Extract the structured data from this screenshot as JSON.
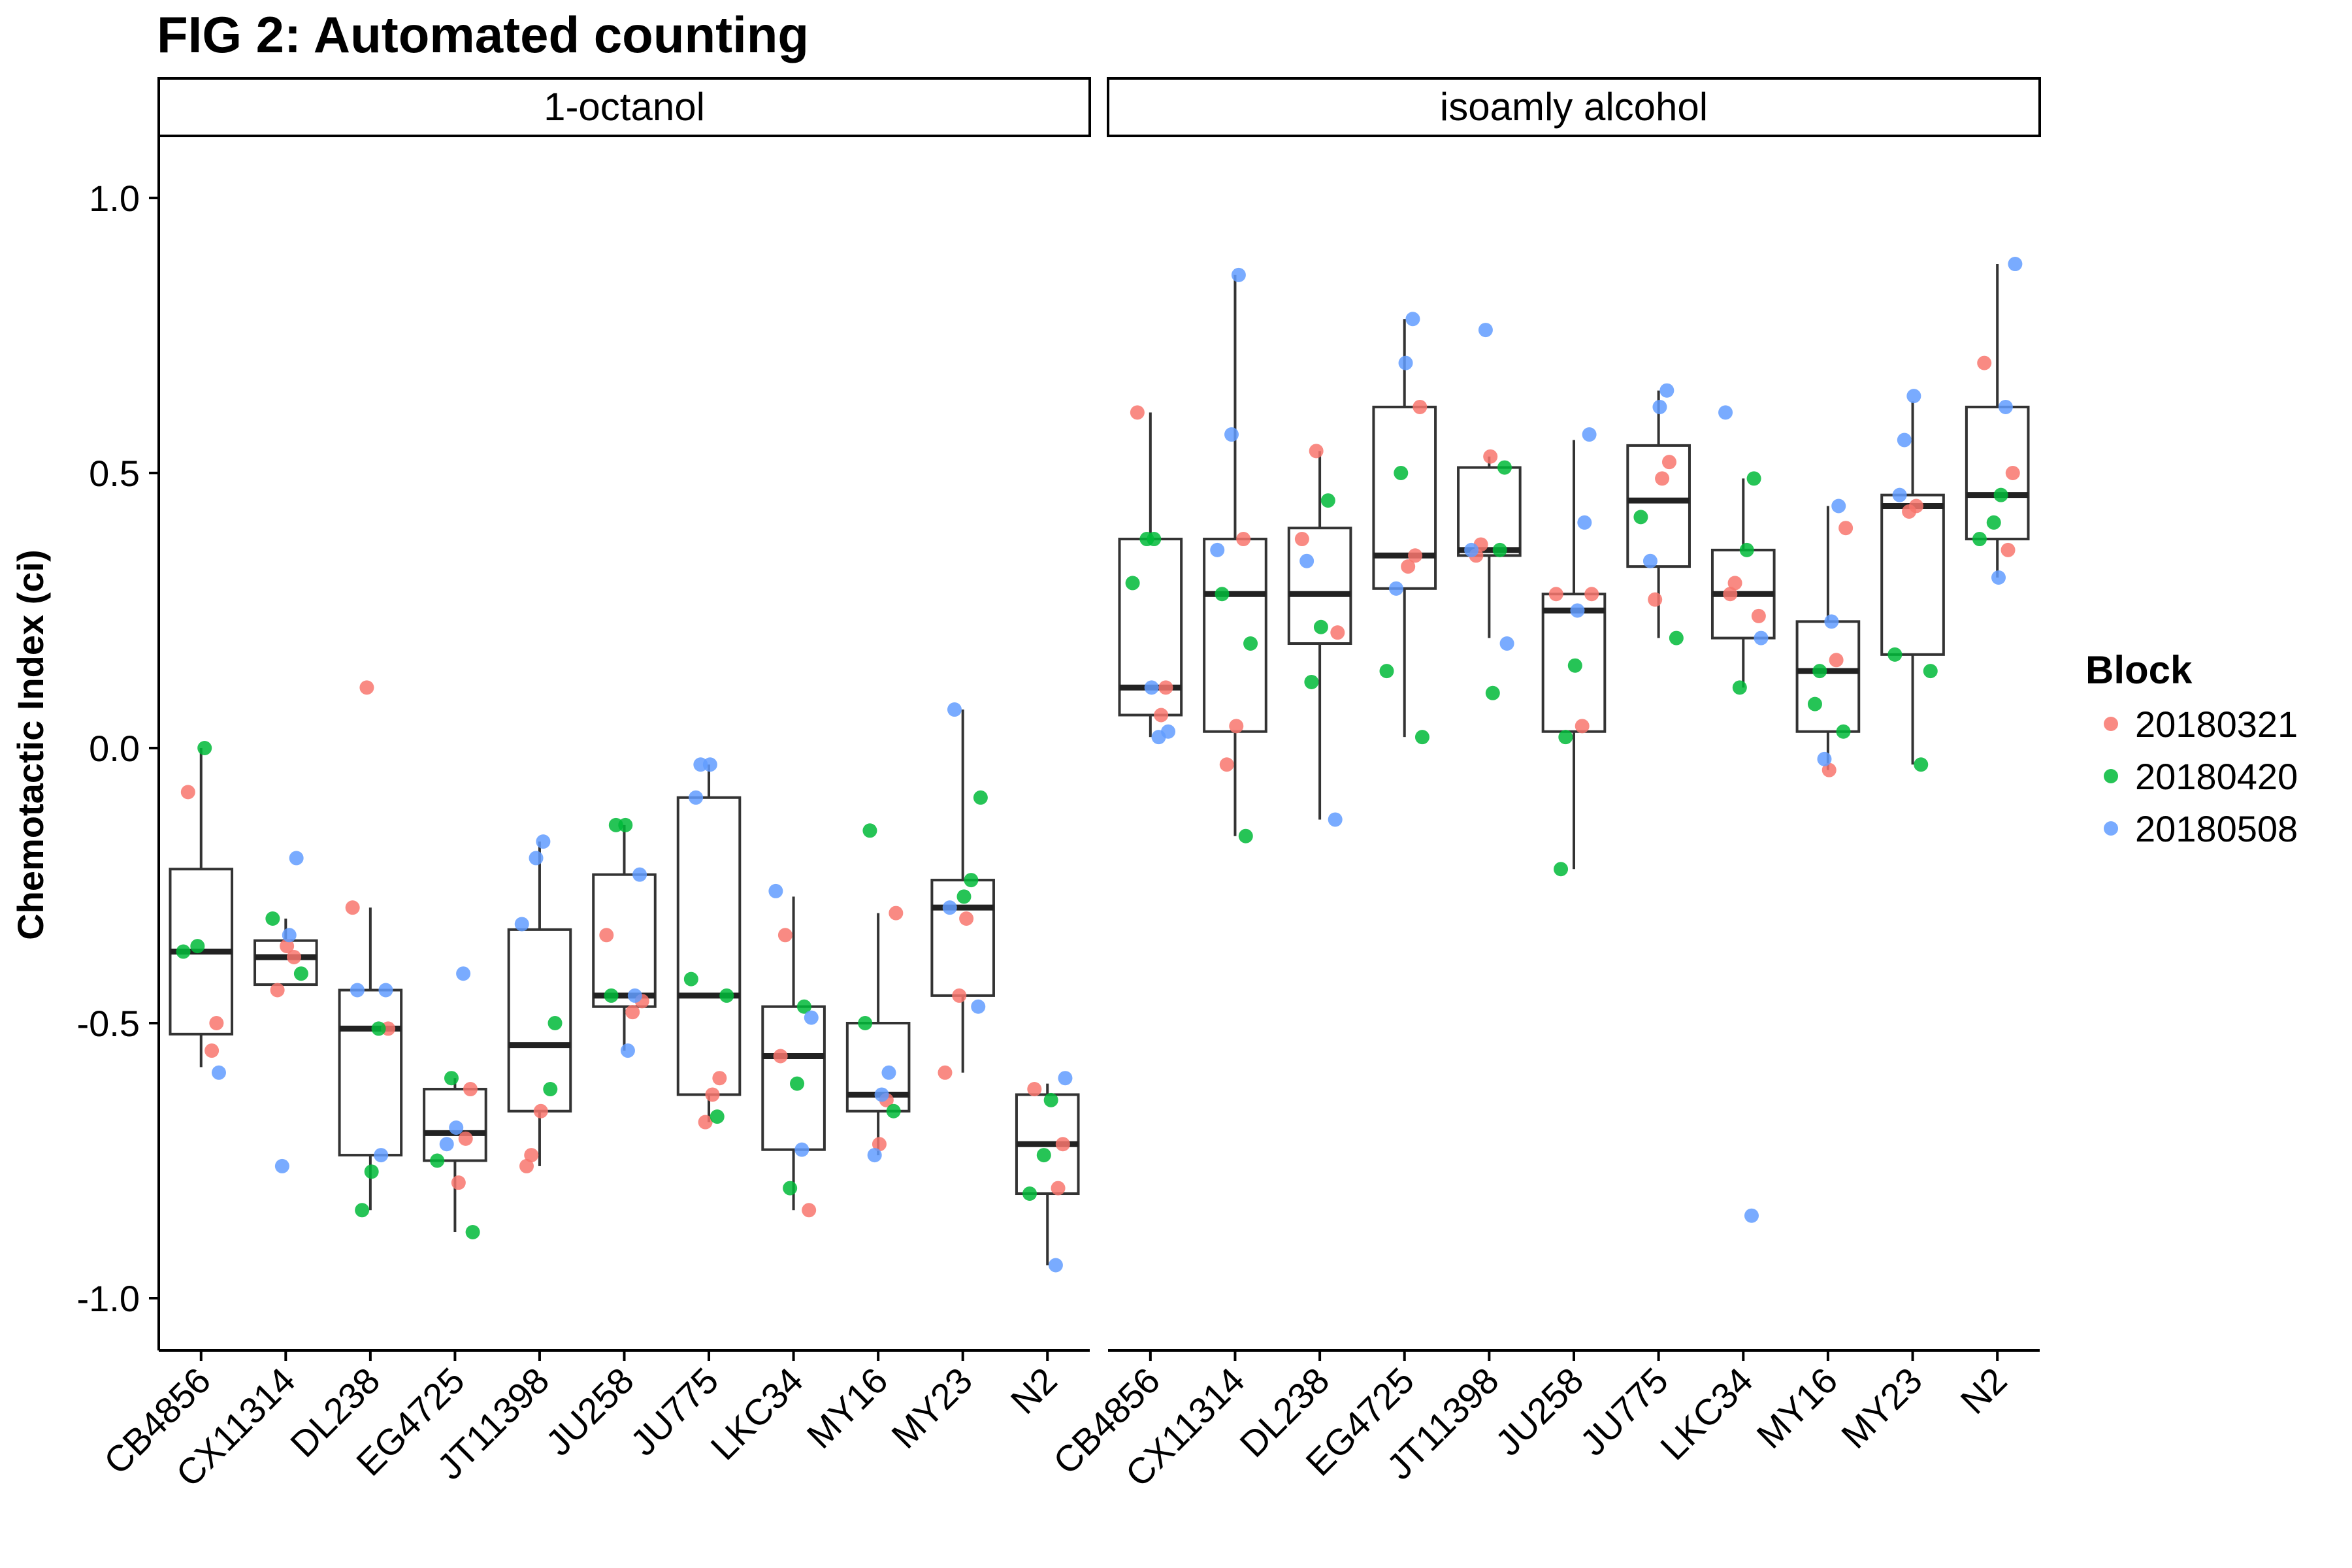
{
  "chart_data": {
    "type": "box",
    "title": "FIG 2: Automated counting",
    "ylabel": "Chemotactic Index (ci)",
    "xlabel": "",
    "ylim": [
      -1.1,
      1.1
    ],
    "yticks": [
      1.0,
      0.5,
      0.0,
      -0.5,
      -1.0
    ],
    "ytick_labels": [
      "1.0",
      "0.5",
      "0.0",
      "-0.5",
      "-1.0"
    ],
    "grid": false,
    "categories": [
      "CB4856",
      "CX11314",
      "DL238",
      "EG4725",
      "JT11398",
      "JU258",
      "JU775",
      "LKC34",
      "MY16",
      "MY23",
      "N2"
    ],
    "legend": {
      "title": "Block",
      "position": "right",
      "entries": [
        {
          "label": "20180321",
          "color": "#F8766D"
        },
        {
          "label": "20180420",
          "color": "#00BA38"
        },
        {
          "label": "20180508",
          "color": "#619CFF"
        }
      ]
    },
    "panels": [
      {
        "strip": "1-octanol",
        "boxes": [
          {
            "q1": -0.52,
            "median": -0.37,
            "q3": -0.22,
            "wlo": -0.58,
            "whi": 0.0
          },
          {
            "q1": -0.43,
            "median": -0.38,
            "q3": -0.35,
            "wlo": -0.43,
            "whi": -0.31
          },
          {
            "q1": -0.74,
            "median": -0.51,
            "q3": -0.44,
            "wlo": -0.84,
            "whi": -0.29
          },
          {
            "q1": -0.75,
            "median": -0.7,
            "q3": -0.62,
            "wlo": -0.88,
            "whi": -0.6
          },
          {
            "q1": -0.66,
            "median": -0.54,
            "q3": -0.33,
            "wlo": -0.76,
            "whi": -0.17
          },
          {
            "q1": -0.47,
            "median": -0.45,
            "q3": -0.23,
            "wlo": -0.55,
            "whi": -0.14
          },
          {
            "q1": -0.63,
            "median": -0.45,
            "q3": -0.09,
            "wlo": -0.68,
            "whi": -0.03
          },
          {
            "q1": -0.73,
            "median": -0.56,
            "q3": -0.47,
            "wlo": -0.84,
            "whi": -0.27
          },
          {
            "q1": -0.66,
            "median": -0.63,
            "q3": -0.5,
            "wlo": -0.74,
            "whi": -0.3
          },
          {
            "q1": -0.45,
            "median": -0.29,
            "q3": -0.24,
            "wlo": -0.59,
            "whi": 0.07
          },
          {
            "q1": -0.81,
            "median": -0.72,
            "q3": -0.63,
            "wlo": -0.94,
            "whi": -0.61
          }
        ],
        "points": [
          [
            [
              -0.08,
              "20180321"
            ],
            [
              -0.5,
              "20180321"
            ],
            [
              -0.55,
              "20180321"
            ],
            [
              0.0,
              "20180420"
            ],
            [
              -0.36,
              "20180420"
            ],
            [
              -0.37,
              "20180420"
            ],
            [
              -0.59,
              "20180508"
            ]
          ],
          [
            [
              -0.38,
              "20180321"
            ],
            [
              -0.36,
              "20180321"
            ],
            [
              -0.44,
              "20180321"
            ],
            [
              -0.31,
              "20180420"
            ],
            [
              -0.41,
              "20180420"
            ],
            [
              -0.2,
              "20180508"
            ],
            [
              -0.34,
              "20180508"
            ],
            [
              -0.76,
              "20180508"
            ]
          ],
          [
            [
              0.11,
              "20180321"
            ],
            [
              -0.29,
              "20180321"
            ],
            [
              -0.51,
              "20180321"
            ],
            [
              -0.51,
              "20180420"
            ],
            [
              -0.77,
              "20180420"
            ],
            [
              -0.84,
              "20180420"
            ],
            [
              -0.44,
              "20180508"
            ],
            [
              -0.44,
              "20180508"
            ],
            [
              -0.74,
              "20180508"
            ]
          ],
          [
            [
              -0.62,
              "20180321"
            ],
            [
              -0.71,
              "20180321"
            ],
            [
              -0.79,
              "20180321"
            ],
            [
              -0.6,
              "20180420"
            ],
            [
              -0.75,
              "20180420"
            ],
            [
              -0.88,
              "20180420"
            ],
            [
              -0.41,
              "20180508"
            ],
            [
              -0.69,
              "20180508"
            ],
            [
              -0.72,
              "20180508"
            ]
          ],
          [
            [
              -0.66,
              "20180321"
            ],
            [
              -0.74,
              "20180321"
            ],
            [
              -0.76,
              "20180321"
            ],
            [
              -0.5,
              "20180420"
            ],
            [
              -0.62,
              "20180420"
            ],
            [
              -0.17,
              "20180508"
            ],
            [
              -0.2,
              "20180508"
            ],
            [
              -0.32,
              "20180508"
            ]
          ],
          [
            [
              -0.34,
              "20180321"
            ],
            [
              -0.46,
              "20180321"
            ],
            [
              -0.48,
              "20180321"
            ],
            [
              -0.14,
              "20180420"
            ],
            [
              -0.14,
              "20180420"
            ],
            [
              -0.45,
              "20180420"
            ],
            [
              -0.23,
              "20180508"
            ],
            [
              -0.45,
              "20180508"
            ],
            [
              -0.55,
              "20180508"
            ]
          ],
          [
            [
              -0.6,
              "20180321"
            ],
            [
              -0.63,
              "20180321"
            ],
            [
              -0.68,
              "20180321"
            ],
            [
              -0.42,
              "20180420"
            ],
            [
              -0.45,
              "20180420"
            ],
            [
              -0.67,
              "20180420"
            ],
            [
              -0.03,
              "20180508"
            ],
            [
              -0.03,
              "20180508"
            ],
            [
              -0.09,
              "20180508"
            ]
          ],
          [
            [
              -0.34,
              "20180321"
            ],
            [
              -0.56,
              "20180321"
            ],
            [
              -0.84,
              "20180321"
            ],
            [
              -0.47,
              "20180420"
            ],
            [
              -0.61,
              "20180420"
            ],
            [
              -0.8,
              "20180420"
            ],
            [
              -0.26,
              "20180508"
            ],
            [
              -0.49,
              "20180508"
            ],
            [
              -0.73,
              "20180508"
            ]
          ],
          [
            [
              -0.3,
              "20180321"
            ],
            [
              -0.64,
              "20180321"
            ],
            [
              -0.72,
              "20180321"
            ],
            [
              -0.15,
              "20180420"
            ],
            [
              -0.5,
              "20180420"
            ],
            [
              -0.66,
              "20180420"
            ],
            [
              -0.59,
              "20180508"
            ],
            [
              -0.63,
              "20180508"
            ],
            [
              -0.74,
              "20180508"
            ]
          ],
          [
            [
              -0.31,
              "20180321"
            ],
            [
              -0.45,
              "20180321"
            ],
            [
              -0.59,
              "20180321"
            ],
            [
              -0.09,
              "20180420"
            ],
            [
              -0.24,
              "20180420"
            ],
            [
              -0.27,
              "20180420"
            ],
            [
              0.07,
              "20180508"
            ],
            [
              -0.29,
              "20180508"
            ],
            [
              -0.47,
              "20180508"
            ]
          ],
          [
            [
              -0.62,
              "20180321"
            ],
            [
              -0.72,
              "20180321"
            ],
            [
              -0.8,
              "20180321"
            ],
            [
              -0.64,
              "20180420"
            ],
            [
              -0.74,
              "20180420"
            ],
            [
              -0.81,
              "20180420"
            ],
            [
              -0.6,
              "20180508"
            ],
            [
              -0.94,
              "20180508"
            ]
          ]
        ]
      },
      {
        "strip": "isoamly alcohol",
        "boxes": [
          {
            "q1": 0.06,
            "median": 0.11,
            "q3": 0.38,
            "wlo": 0.02,
            "whi": 0.61
          },
          {
            "q1": 0.03,
            "median": 0.28,
            "q3": 0.38,
            "wlo": -0.16,
            "whi": 0.86
          },
          {
            "q1": 0.19,
            "median": 0.28,
            "q3": 0.4,
            "wlo": -0.13,
            "whi": 0.54
          },
          {
            "q1": 0.29,
            "median": 0.35,
            "q3": 0.62,
            "wlo": 0.02,
            "whi": 0.78
          },
          {
            "q1": 0.35,
            "median": 0.36,
            "q3": 0.51,
            "wlo": 0.2,
            "whi": 0.53
          },
          {
            "q1": 0.03,
            "median": 0.25,
            "q3": 0.28,
            "wlo": -0.22,
            "whi": 0.56
          },
          {
            "q1": 0.33,
            "median": 0.45,
            "q3": 0.55,
            "wlo": 0.2,
            "whi": 0.65
          },
          {
            "q1": 0.2,
            "median": 0.28,
            "q3": 0.36,
            "wlo": 0.11,
            "whi": 0.49
          },
          {
            "q1": 0.03,
            "median": 0.14,
            "q3": 0.23,
            "wlo": -0.04,
            "whi": 0.44
          },
          {
            "q1": 0.17,
            "median": 0.44,
            "q3": 0.46,
            "wlo": -0.03,
            "whi": 0.63
          },
          {
            "q1": 0.38,
            "median": 0.46,
            "q3": 0.62,
            "wlo": 0.31,
            "whi": 0.88
          }
        ],
        "points": [
          [
            [
              0.61,
              "20180321"
            ],
            [
              0.11,
              "20180321"
            ],
            [
              0.06,
              "20180321"
            ],
            [
              0.38,
              "20180420"
            ],
            [
              0.38,
              "20180420"
            ],
            [
              0.3,
              "20180420"
            ],
            [
              0.03,
              "20180508"
            ],
            [
              0.02,
              "20180508"
            ],
            [
              0.11,
              "20180508"
            ]
          ],
          [
            [
              0.38,
              "20180321"
            ],
            [
              0.04,
              "20180321"
            ],
            [
              -0.03,
              "20180321"
            ],
            [
              0.28,
              "20180420"
            ],
            [
              0.19,
              "20180420"
            ],
            [
              -0.16,
              "20180420"
            ],
            [
              0.86,
              "20180508"
            ],
            [
              0.57,
              "20180508"
            ],
            [
              0.36,
              "20180508"
            ]
          ],
          [
            [
              0.54,
              "20180321"
            ],
            [
              0.38,
              "20180321"
            ],
            [
              0.21,
              "20180321"
            ],
            [
              0.45,
              "20180420"
            ],
            [
              0.22,
              "20180420"
            ],
            [
              0.12,
              "20180420"
            ],
            [
              0.34,
              "20180508"
            ],
            [
              -0.13,
              "20180508"
            ]
          ],
          [
            [
              0.62,
              "20180321"
            ],
            [
              0.35,
              "20180321"
            ],
            [
              0.33,
              "20180321"
            ],
            [
              0.5,
              "20180420"
            ],
            [
              0.14,
              "20180420"
            ],
            [
              0.02,
              "20180420"
            ],
            [
              0.78,
              "20180508"
            ],
            [
              0.7,
              "20180508"
            ],
            [
              0.29,
              "20180508"
            ]
          ],
          [
            [
              0.53,
              "20180321"
            ],
            [
              0.37,
              "20180321"
            ],
            [
              0.35,
              "20180321"
            ],
            [
              0.51,
              "20180420"
            ],
            [
              0.36,
              "20180420"
            ],
            [
              0.1,
              "20180420"
            ],
            [
              0.76,
              "20180508"
            ],
            [
              0.36,
              "20180508"
            ],
            [
              0.19,
              "20180508"
            ]
          ],
          [
            [
              0.28,
              "20180321"
            ],
            [
              0.28,
              "20180321"
            ],
            [
              0.04,
              "20180321"
            ],
            [
              0.15,
              "20180420"
            ],
            [
              0.02,
              "20180420"
            ],
            [
              -0.22,
              "20180420"
            ],
            [
              0.57,
              "20180508"
            ],
            [
              0.41,
              "20180508"
            ],
            [
              0.25,
              "20180508"
            ]
          ],
          [
            [
              0.52,
              "20180321"
            ],
            [
              0.49,
              "20180321"
            ],
            [
              0.27,
              "20180321"
            ],
            [
              0.42,
              "20180420"
            ],
            [
              0.2,
              "20180420"
            ],
            [
              0.65,
              "20180508"
            ],
            [
              0.62,
              "20180508"
            ],
            [
              0.34,
              "20180508"
            ]
          ],
          [
            [
              0.3,
              "20180321"
            ],
            [
              0.28,
              "20180321"
            ],
            [
              0.24,
              "20180321"
            ],
            [
              0.49,
              "20180420"
            ],
            [
              0.36,
              "20180420"
            ],
            [
              0.11,
              "20180420"
            ],
            [
              0.61,
              "20180508"
            ],
            [
              0.2,
              "20180508"
            ],
            [
              -0.85,
              "20180508"
            ]
          ],
          [
            [
              0.4,
              "20180321"
            ],
            [
              0.16,
              "20180321"
            ],
            [
              -0.04,
              "20180321"
            ],
            [
              0.14,
              "20180420"
            ],
            [
              0.08,
              "20180420"
            ],
            [
              0.03,
              "20180420"
            ],
            [
              0.44,
              "20180508"
            ],
            [
              0.23,
              "20180508"
            ],
            [
              -0.02,
              "20180508"
            ]
          ],
          [
            [
              0.44,
              "20180321"
            ],
            [
              0.43,
              "20180321"
            ],
            [
              0.17,
              "20180420"
            ],
            [
              0.14,
              "20180420"
            ],
            [
              -0.03,
              "20180420"
            ],
            [
              0.64,
              "20180508"
            ],
            [
              0.56,
              "20180508"
            ],
            [
              0.46,
              "20180508"
            ]
          ],
          [
            [
              0.7,
              "20180321"
            ],
            [
              0.5,
              "20180321"
            ],
            [
              0.36,
              "20180321"
            ],
            [
              0.46,
              "20180420"
            ],
            [
              0.41,
              "20180420"
            ],
            [
              0.38,
              "20180420"
            ],
            [
              0.88,
              "20180508"
            ],
            [
              0.62,
              "20180508"
            ],
            [
              0.31,
              "20180508"
            ]
          ]
        ]
      }
    ]
  }
}
